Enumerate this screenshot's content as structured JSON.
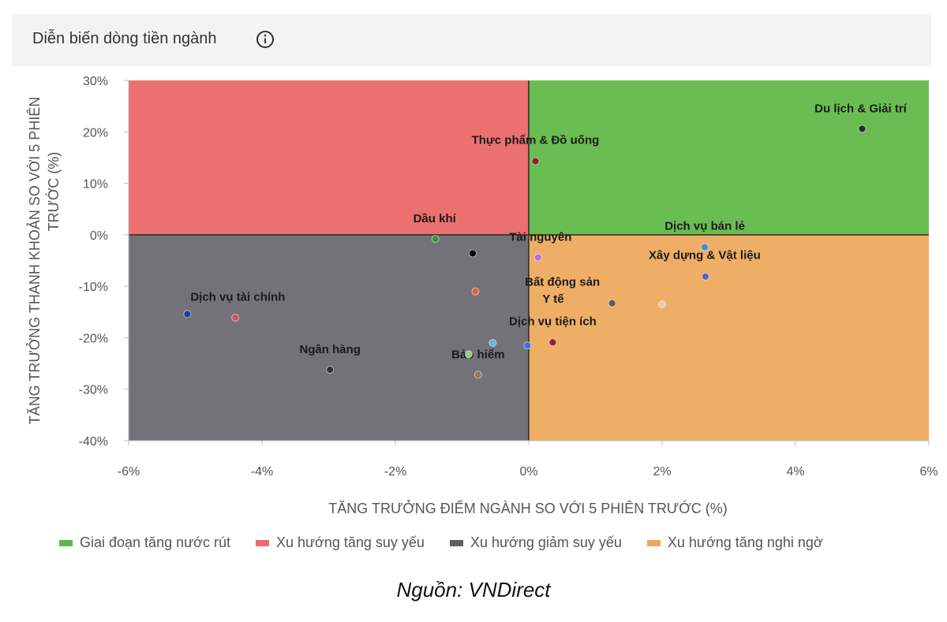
{
  "header": {
    "title": "Diễn biến dòng tiền ngành",
    "info_icon": "info-circle-icon"
  },
  "chart_data": {
    "type": "scatter",
    "title": "Diễn biến dòng tiền ngành",
    "xlabel": "TĂNG TRƯỞNG ĐIỂM NGÀNH SO VỚI 5 PHIÊN TRƯỚC (%)",
    "ylabel_lines": [
      "TĂNG TRƯỞNG THANH KHOẢN SO VỚI 5 PHIÊN",
      "TRƯỚC (%)"
    ],
    "xlim": [
      -6,
      6
    ],
    "ylim": [
      -40,
      30
    ],
    "x_ticks": [
      -6,
      -4,
      -2,
      0,
      2,
      4,
      6
    ],
    "y_ticks": [
      30,
      20,
      10,
      0,
      -10,
      -20,
      -30,
      -40
    ],
    "x_tick_labels": [
      "-6%",
      "-4%",
      "-2%",
      "0%",
      "2%",
      "4%",
      "6%"
    ],
    "y_tick_labels": [
      "30%",
      "20%",
      "10%",
      "0%",
      "-10%",
      "-20%",
      "-30%",
      "-40%"
    ],
    "quadrants": [
      {
        "name": "Giai đoạn tăng nước rút",
        "color": "#6abd52",
        "x_range": [
          0,
          6
        ],
        "y_range": [
          0,
          30
        ]
      },
      {
        "name": "Xu hướng tăng suy yếu",
        "color": "#ec7070",
        "x_range": [
          -6,
          0
        ],
        "y_range": [
          0,
          30
        ]
      },
      {
        "name": "Xu hướng giảm suy yếu",
        "color": "#737279",
        "x_range": [
          -6,
          0
        ],
        "y_range": [
          -40,
          0
        ]
      },
      {
        "name": "Xu hướng tăng nghi ngờ",
        "color": "#efae65",
        "x_range": [
          0,
          6
        ],
        "y_range": [
          -40,
          0
        ]
      }
    ],
    "points": [
      {
        "label": "Du lịch & Giải trí",
        "x": 5.0,
        "y": 20.6,
        "color": "#2b2b2b"
      },
      {
        "label": "Thực phẩm & Đồ uống",
        "x": 0.1,
        "y": 14.3,
        "color": "#8a1f2b"
      },
      {
        "label": "Dầu khí",
        "x": -1.4,
        "y": -0.8,
        "color": "#3f8f3a"
      },
      {
        "label": "Tài nguyên",
        "x": 0.14,
        "y": -4.4,
        "color": "#b46fd8"
      },
      {
        "label": "Dịch vụ bán lẻ",
        "x": 2.64,
        "y": -2.4,
        "color": "#4a86c6"
      },
      {
        "label": "Xây dựng & Vật liệu",
        "x": 2.65,
        "y": -8.1,
        "color": "#5a5fce"
      },
      {
        "label": "Bất động sản",
        "x": 1.25,
        "y": -13.3,
        "color": "#5a5a5a"
      },
      {
        "label": "Y tế",
        "x": 2.0,
        "y": -13.5,
        "color": "#f3c4bf"
      },
      {
        "label": "Dịch vụ tài chính",
        "x": -5.12,
        "y": -15.4,
        "color": "#1f3e9a"
      },
      {
        "label": "Ngân hàng",
        "x": -2.98,
        "y": -26.2,
        "color": "#333333"
      },
      {
        "label": "Dịch vụ tiện ích",
        "x": 0.36,
        "y": -20.9,
        "color": "#9b1c3a"
      },
      {
        "label": "Bảo hiểm",
        "x": -0.76,
        "y": -27.2,
        "color": "#8a7a55"
      },
      {
        "label": "",
        "x": -4.4,
        "y": -16.1,
        "color": "#d94b6a"
      },
      {
        "label": "",
        "x": -0.84,
        "y": -3.6,
        "color": "#000000"
      },
      {
        "label": "",
        "x": -0.8,
        "y": -11.0,
        "color": "#e0603a"
      },
      {
        "label": "",
        "x": -0.54,
        "y": -21.0,
        "color": "#5ab5e8"
      },
      {
        "label": "",
        "x": -0.02,
        "y": -21.5,
        "color": "#3a6fd8"
      },
      {
        "label": "",
        "x": -0.9,
        "y": -23.2,
        "color": "#8fd07a"
      }
    ]
  },
  "legend": [
    {
      "label": "Giai đoạn tăng nước rút",
      "color": "#5bb84a"
    },
    {
      "label": "Xu hướng tăng suy yếu",
      "color": "#ec6a6a"
    },
    {
      "label": "Xu hướng giảm suy yếu",
      "color": "#5f5e63"
    },
    {
      "label": "Xu hướng tăng nghi ngờ",
      "color": "#eea85c"
    }
  ],
  "source": "Nguồn: VNDirect"
}
